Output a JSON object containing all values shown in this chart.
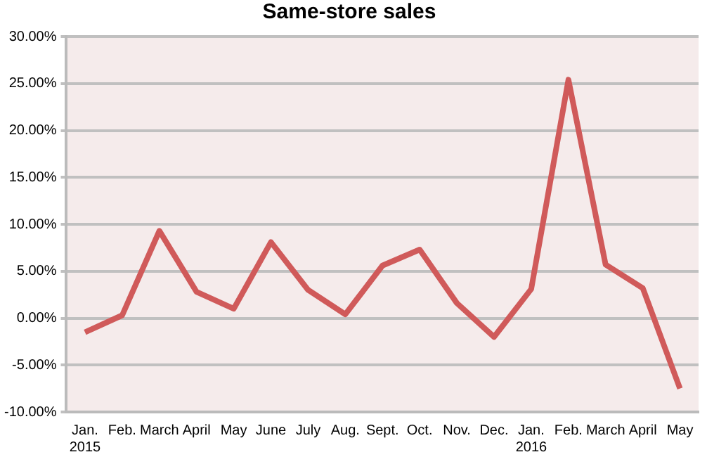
{
  "chart_data": {
    "type": "line",
    "title": "Same-store sales",
    "categories": [
      "Jan.\n2015",
      "Feb.",
      "March",
      "April",
      "May",
      "June",
      "July",
      "Aug.",
      "Sept.",
      "Oct.",
      "Nov.",
      "Dec.",
      "Jan.\n2016",
      "Feb.",
      "March",
      "April",
      "May"
    ],
    "series": [
      {
        "color": "#d05a5a",
        "values": [
          -1.5,
          0.3,
          9.3,
          2.8,
          1.0,
          8.1,
          3.0,
          0.4,
          5.6,
          7.3,
          1.6,
          -2.0,
          3.1,
          25.4,
          5.7,
          3.2,
          -7.5
        ]
      }
    ],
    "ylim": [
      -10,
      30
    ],
    "yticks": [
      {
        "value": -10,
        "label": "-10.00%"
      },
      {
        "value": -5,
        "label": "-5.00%"
      },
      {
        "value": 0,
        "label": "0.00%"
      },
      {
        "value": 5,
        "label": "5.00%"
      },
      {
        "value": 10,
        "label": "10.00%"
      },
      {
        "value": 15,
        "label": "15.00%"
      },
      {
        "value": 20,
        "label": "20.00%"
      },
      {
        "value": 25,
        "label": "25.00%"
      },
      {
        "value": 30,
        "label": "30.00%"
      }
    ],
    "grid": "y",
    "legend": false,
    "marker": "none",
    "line_style": "solid"
  }
}
